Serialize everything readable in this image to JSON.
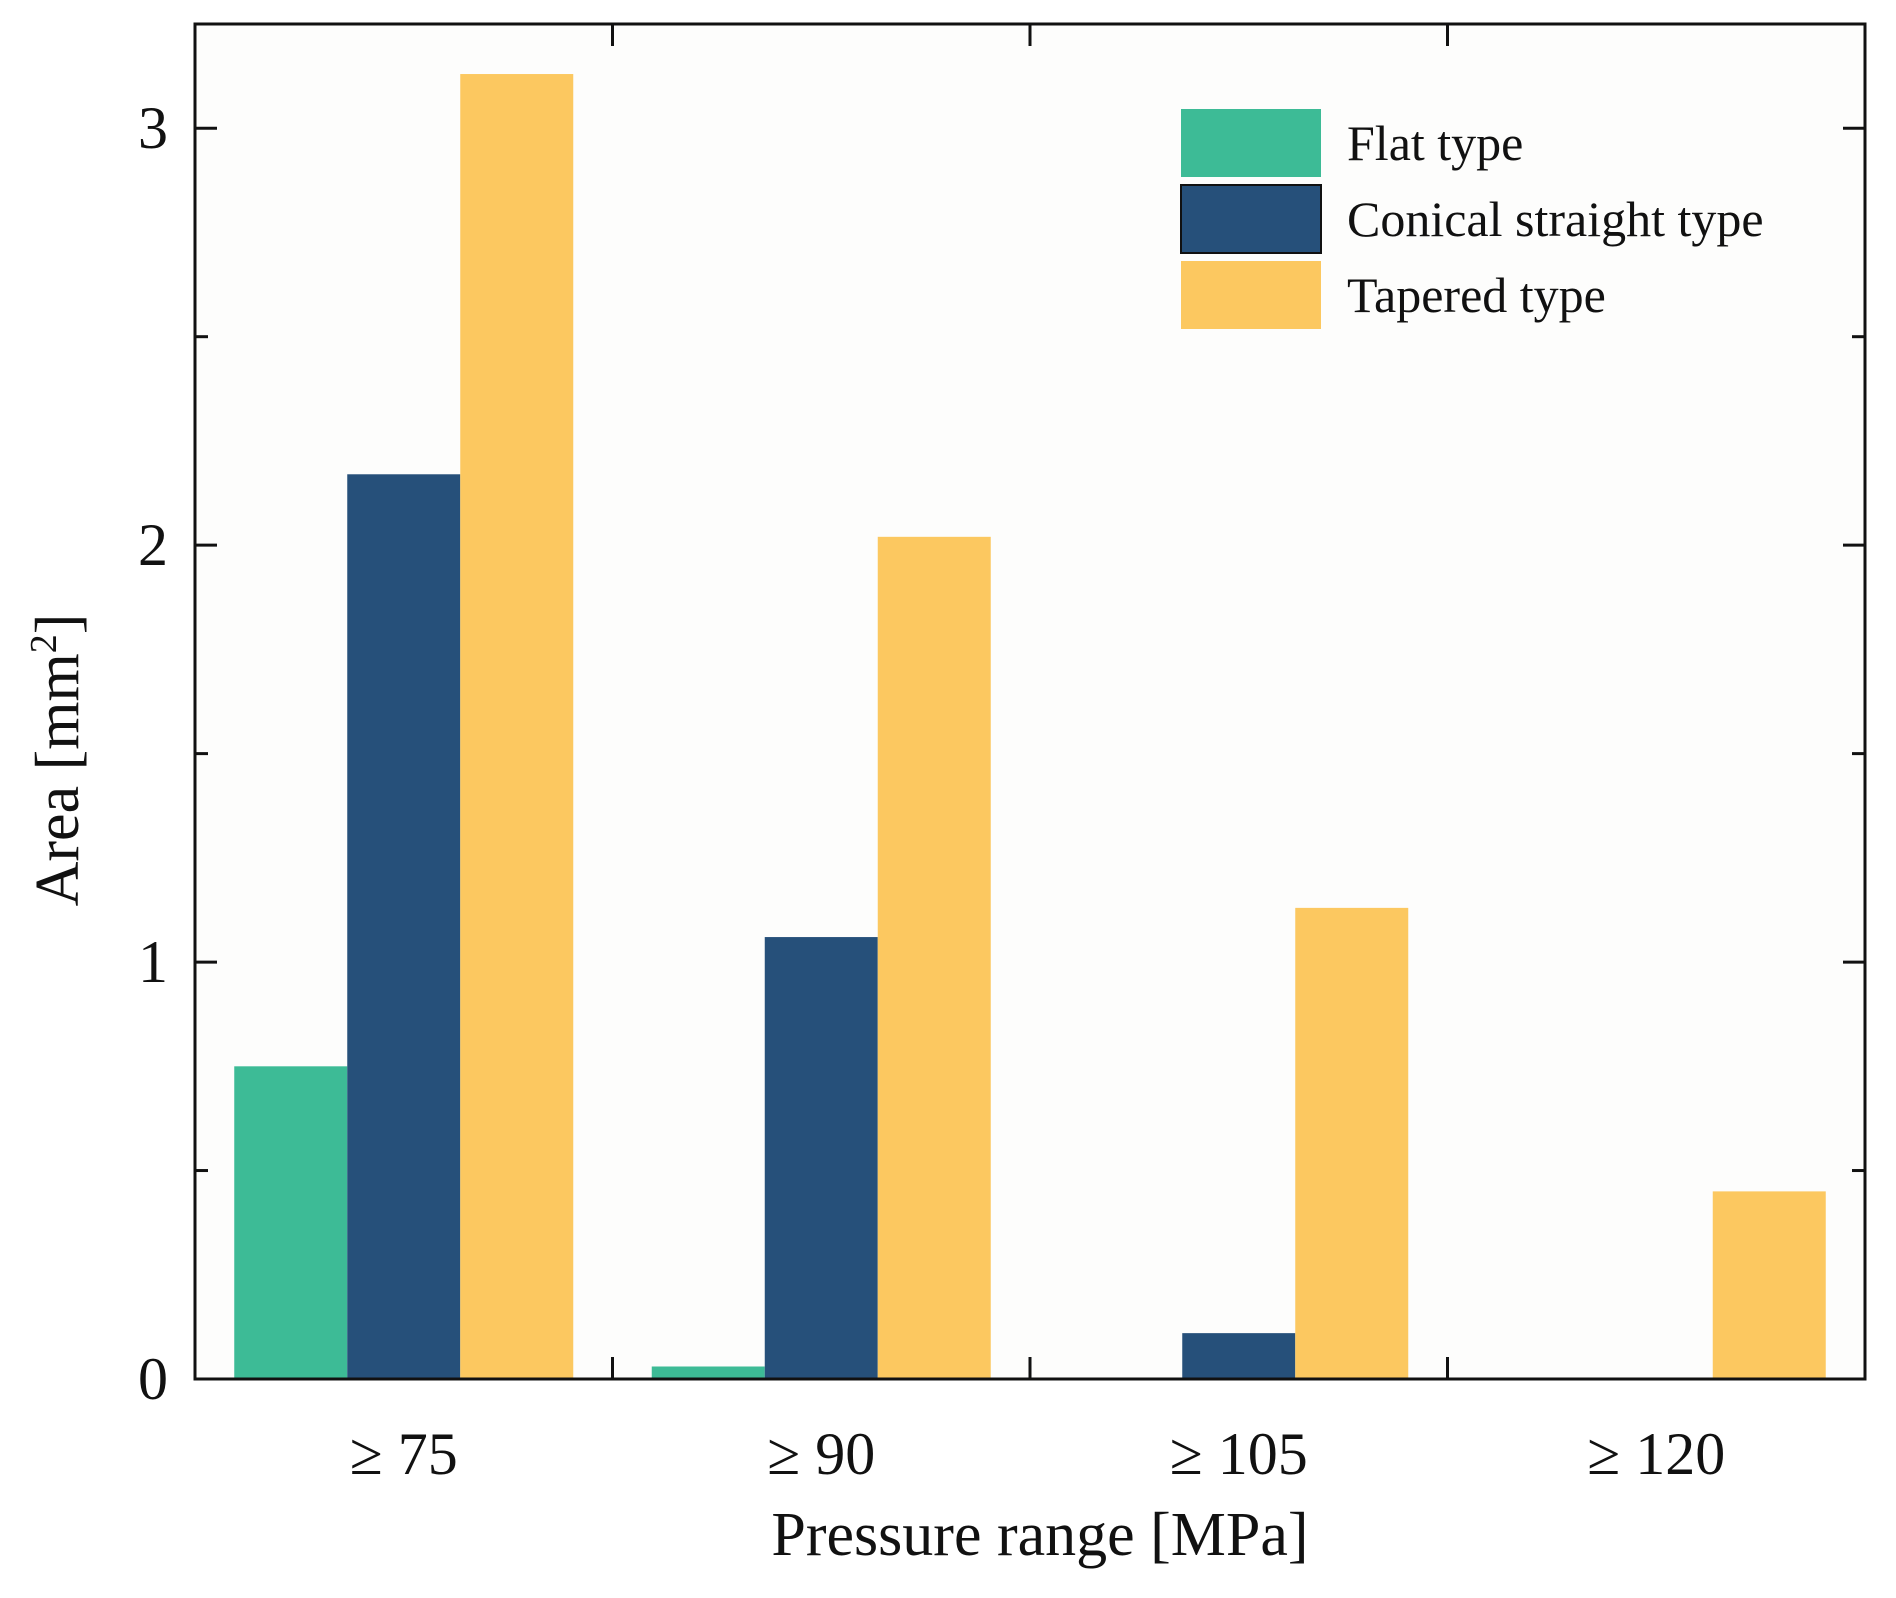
{
  "chart_data": {
    "type": "bar",
    "title": "",
    "xlabel": "Pressure range [MPa]",
    "ylabel": "Area [mm",
    "ylabel_superscript": "2",
    "ylabel_close": "]",
    "categories": [
      "≥ 75",
      "≥ 90",
      "≥ 105",
      "≥ 120"
    ],
    "series": [
      {
        "name": "Flat type",
        "color": "#3dbb96",
        "values": [
          0.75,
          0.03,
          0,
          0
        ]
      },
      {
        "name": "Conical straight type",
        "color": "#26507a",
        "values": [
          2.17,
          1.06,
          0.11,
          0
        ]
      },
      {
        "name": "Tapered type",
        "color": "#fcc860",
        "values": [
          3.13,
          2.02,
          1.13,
          0.45
        ]
      }
    ],
    "ylim": [
      0,
      3.25
    ],
    "yticks": [
      0,
      1,
      2,
      3
    ],
    "yticks_minor": [
      0.5,
      1.5,
      2.5
    ],
    "grid": false,
    "legend_position": "top-right"
  }
}
